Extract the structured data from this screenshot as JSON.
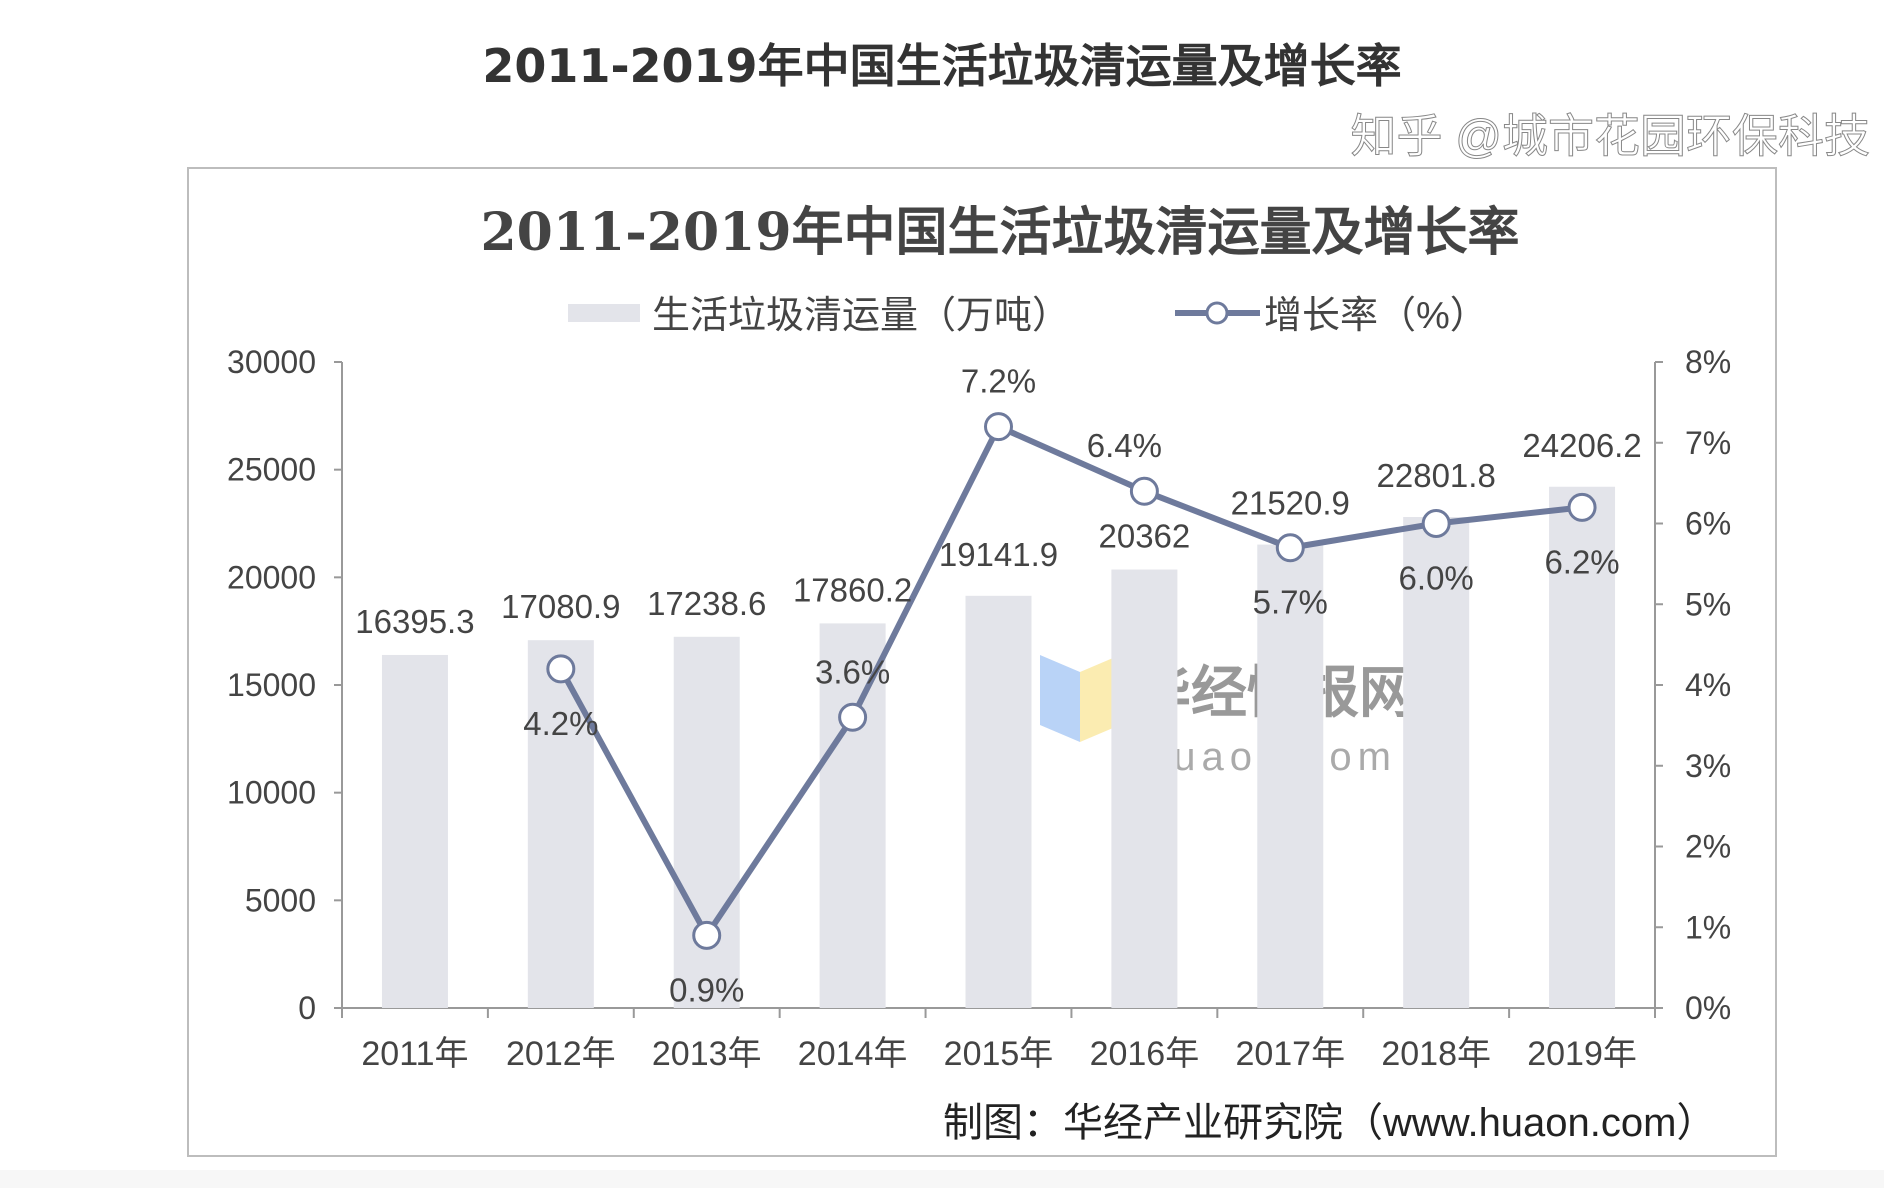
{
  "page_title": "2011-2019年中国生活垃圾清运量及增长率",
  "chart_data": {
    "type": "bar+line",
    "title": "2011-2019年中国生活垃圾清运量及增长率",
    "categories": [
      "2011年",
      "2012年",
      "2013年",
      "2014年",
      "2015年",
      "2016年",
      "2017年",
      "2018年",
      "2019年"
    ],
    "series": [
      {
        "name": "生活垃圾清运量（万吨）",
        "type": "bar",
        "axis": "left",
        "color": "#e3e4ea",
        "values": [
          16395.3,
          17080.9,
          17238.6,
          17860.2,
          19141.9,
          20362,
          21520.9,
          22801.8,
          24206.2
        ],
        "labels": [
          "16395.3",
          "17080.9",
          "17238.6",
          "17860.2",
          "19141.9",
          "20362",
          "21520.9",
          "22801.8",
          "24206.2"
        ]
      },
      {
        "name": "增长率（%）",
        "type": "line",
        "axis": "right",
        "color": "#6e7a9c",
        "values": [
          null,
          4.2,
          0.9,
          3.6,
          7.2,
          6.4,
          5.7,
          6.0,
          6.2
        ],
        "labels": [
          null,
          "4.2%",
          "0.9%",
          "3.6%",
          "7.2%",
          "6.4%",
          "5.7%",
          "6.0%",
          "6.2%"
        ]
      }
    ],
    "y_left": {
      "range": [
        0,
        30000
      ],
      "ticks": [
        "0",
        "5000",
        "10000",
        "15000",
        "20000",
        "25000",
        "30000"
      ]
    },
    "y_right": {
      "range": [
        0,
        8
      ],
      "ticks": [
        "0%",
        "1%",
        "2%",
        "3%",
        "4%",
        "5%",
        "6%",
        "7%",
        "8%"
      ]
    },
    "grid": false,
    "legend": "top-center",
    "source": "制图：华经产业研究院（www.huaon.com）",
    "watermarks": [
      "华经情报网",
      "huaon.com",
      "知乎 @城市花园环保科技"
    ]
  }
}
